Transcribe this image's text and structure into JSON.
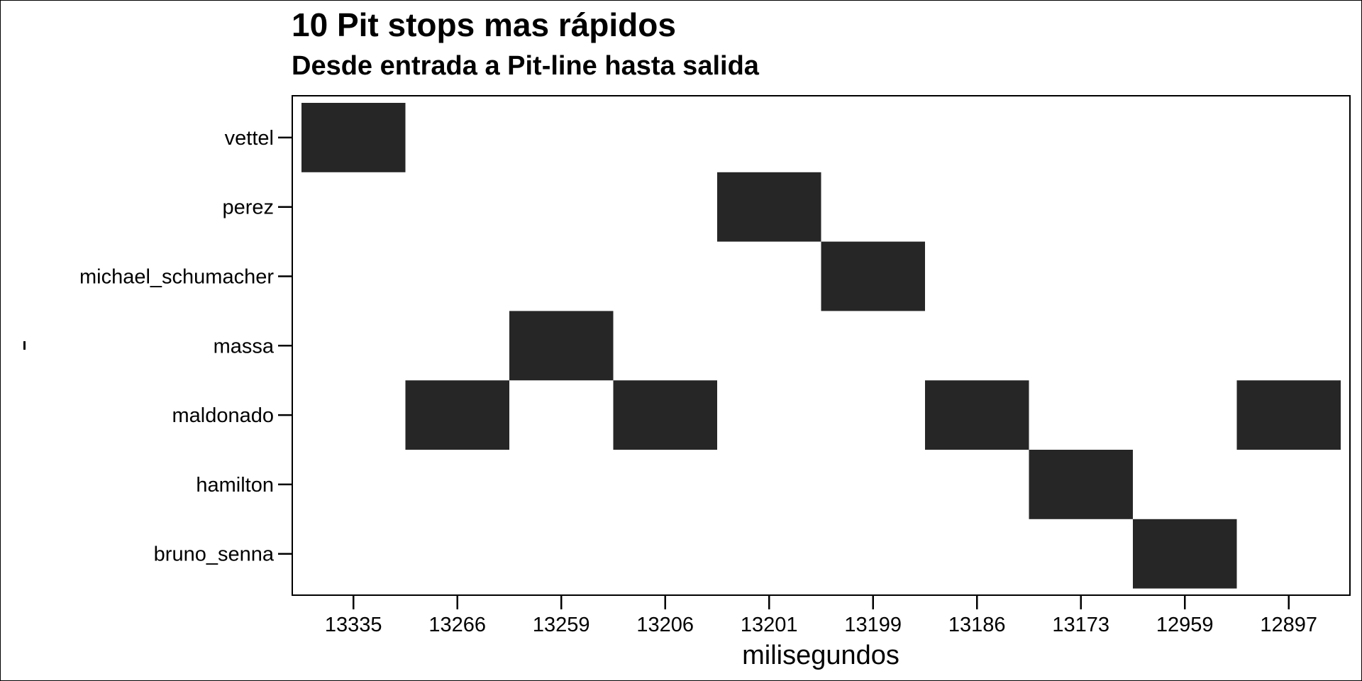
{
  "chart_data": {
    "type": "heatmap",
    "title": "10 Pit stops mas rápidos",
    "subtitle": "Desde entrada a Pit-line hasta salida",
    "xlabel": "milisegundos",
    "ylabel": "",
    "x_categories": [
      "13335",
      "13266",
      "13259",
      "13206",
      "13201",
      "13199",
      "13186",
      "13173",
      "12959",
      "12897"
    ],
    "y_categories": [
      "vettel",
      "perez",
      "michael_schumacher",
      "massa",
      "maldonado",
      "hamilton",
      "bruno_senna"
    ],
    "cells": [
      {
        "x": "13335",
        "y": "vettel"
      },
      {
        "x": "13266",
        "y": "maldonado"
      },
      {
        "x": "13259",
        "y": "massa"
      },
      {
        "x": "13206",
        "y": "maldonado"
      },
      {
        "x": "13201",
        "y": "perez"
      },
      {
        "x": "13199",
        "y": "michael_schumacher"
      },
      {
        "x": "13186",
        "y": "maldonado"
      },
      {
        "x": "13173",
        "y": "hamilton"
      },
      {
        "x": "12959",
        "y": "bruno_senna"
      },
      {
        "x": "12897",
        "y": "maldonado"
      }
    ],
    "cell_color": "#262626",
    "grid": false,
    "legend": "none"
  }
}
